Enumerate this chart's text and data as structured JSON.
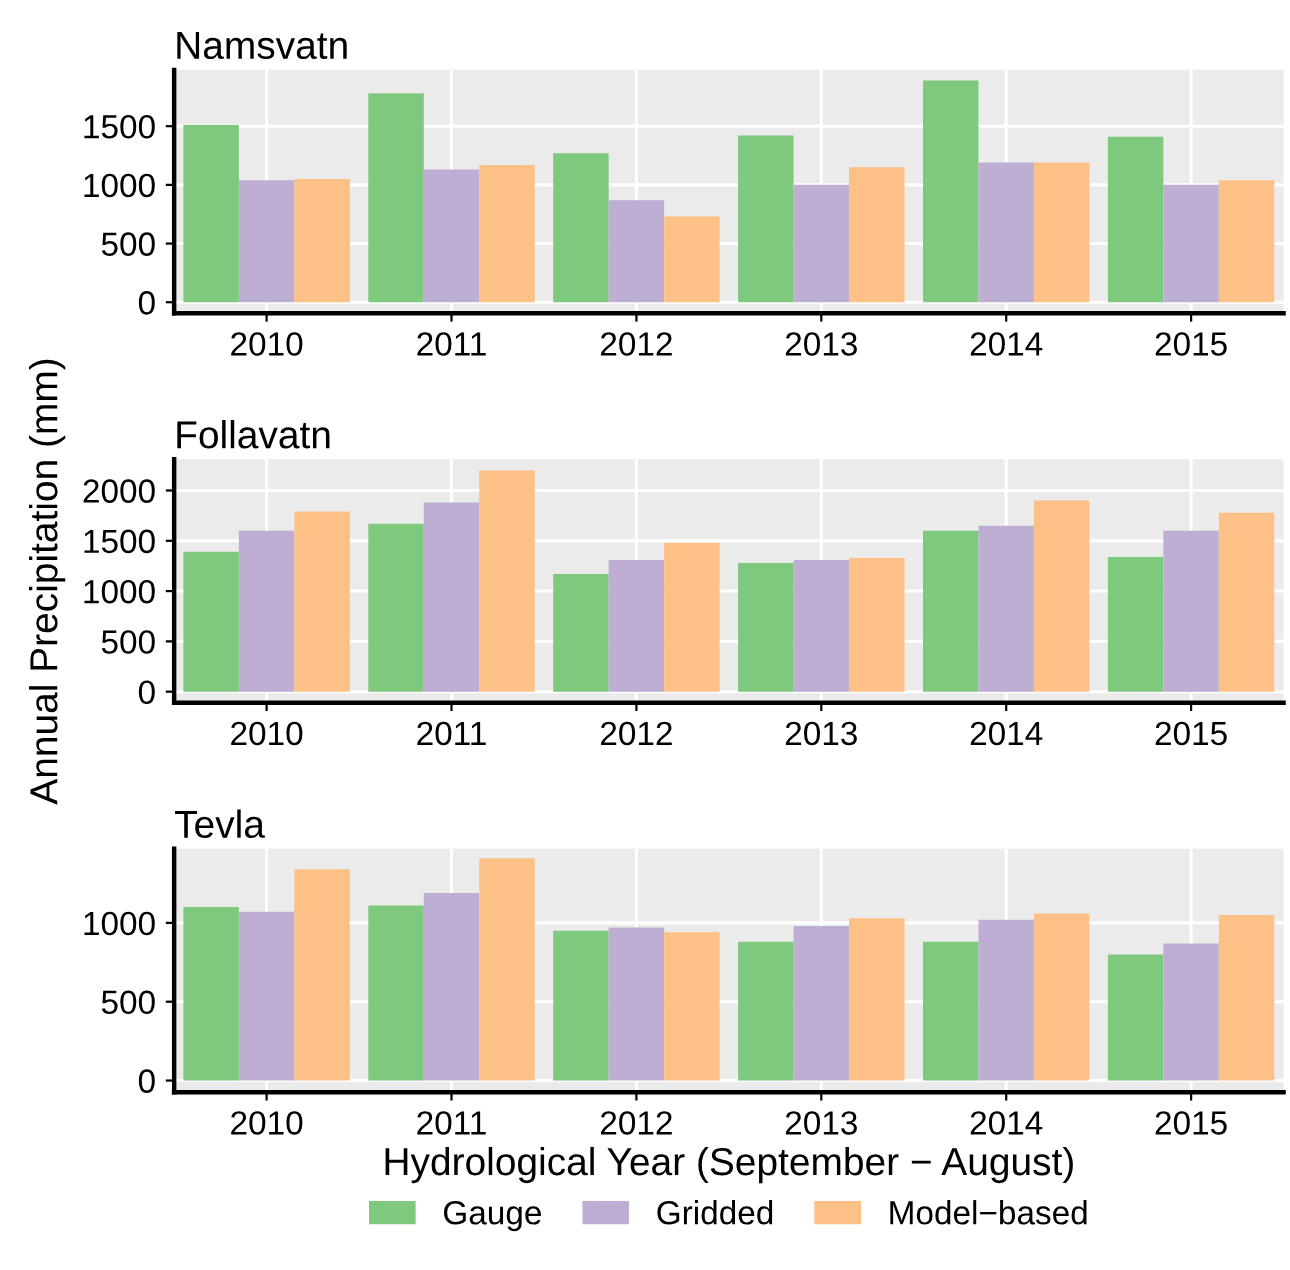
{
  "chart_data": [
    {
      "type": "bar",
      "title": "Namsvatn",
      "categories": [
        "2010",
        "2011",
        "2012",
        "2013",
        "2014",
        "2015"
      ],
      "ylim": [
        -94,
        1980
      ],
      "yticks": [
        0,
        500,
        1000,
        1500
      ],
      "grid": true,
      "legend": false,
      "series": [
        {
          "color": "#7fc97f",
          "values": [
            1510,
            1780,
            1270,
            1420,
            1890,
            1410
          ]
        },
        {
          "color": "#beaed4",
          "values": [
            1040,
            1130,
            870,
            1000,
            1190,
            1000
          ]
        },
        {
          "color": "#fdc086",
          "values": [
            1050,
            1170,
            730,
            1150,
            1190,
            1040
          ]
        }
      ]
    },
    {
      "type": "bar",
      "title": "Follavatn",
      "ylabel": "Annual Precipitation (mm)",
      "categories": [
        "2010",
        "2011",
        "2012",
        "2013",
        "2014",
        "2015"
      ],
      "ylim": [
        -110,
        2310
      ],
      "yticks": [
        0,
        500,
        1000,
        1500,
        2000
      ],
      "grid": true,
      "legend": false,
      "series": [
        {
          "color": "#7fc97f",
          "values": [
            1390,
            1670,
            1170,
            1280,
            1600,
            1340
          ]
        },
        {
          "color": "#beaed4",
          "values": [
            1600,
            1880,
            1310,
            1310,
            1650,
            1600
          ]
        },
        {
          "color": "#fdc086",
          "values": [
            1790,
            2200,
            1480,
            1330,
            1900,
            1780
          ]
        }
      ]
    },
    {
      "type": "bar",
      "title": "Tevla",
      "xlabel": "Hydrological Year (September − August)",
      "categories": [
        "2010",
        "2011",
        "2012",
        "2013",
        "2014",
        "2015"
      ],
      "ylim": [
        -74,
        1470
      ],
      "yticks": [
        0,
        500,
        1000
      ],
      "grid": true,
      "legend": "bottom",
      "series": [
        {
          "name": "Gauge",
          "color": "#7fc97f",
          "values": [
            1100,
            1110,
            950,
            880,
            880,
            800
          ]
        },
        {
          "name": "Gridded",
          "color": "#beaed4",
          "values": [
            1070,
            1190,
            970,
            980,
            1020,
            870
          ]
        },
        {
          "name": "Model−based",
          "color": "#fdc086",
          "values": [
            1340,
            1410,
            940,
            1030,
            1060,
            1050
          ]
        }
      ]
    }
  ]
}
